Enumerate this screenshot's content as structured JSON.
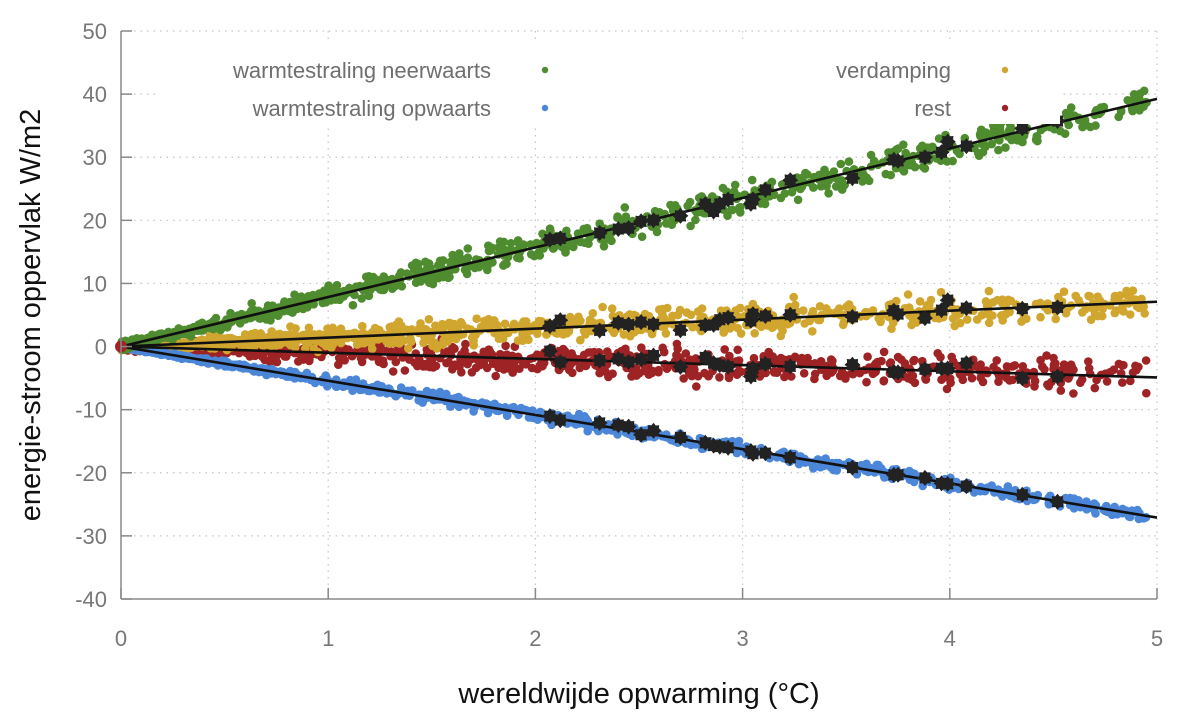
{
  "chart_data": {
    "type": "scatter",
    "title": "",
    "xlabel": "wereldwijde opwarming (°C)",
    "ylabel": "energie-stroom oppervlak W/m2",
    "xlim": [
      0,
      5
    ],
    "ylim": [
      -40,
      50
    ],
    "x_ticks": [
      "0",
      "1",
      "2",
      "3",
      "4",
      "5"
    ],
    "y_ticks": [
      "50",
      "40",
      "30",
      "20",
      "10",
      "0",
      "-10",
      "-20",
      "-30",
      "-40"
    ],
    "grid": true,
    "legend_placement": "top",
    "series": [
      {
        "name": "warmtestraling neerwaarts",
        "color": "#4e8c2f",
        "fit_slope": 7.85,
        "spread": 1.1,
        "legend_column": "left"
      },
      {
        "name": "warmtestraling opwaarts",
        "color": "#4b86d8",
        "fit_slope": -5.42,
        "spread": 0.45,
        "legend_column": "left"
      },
      {
        "name": "verdamping",
        "color": "#d1a62f",
        "fit_slope": 1.42,
        "spread": 1.1,
        "legend_column": "right"
      },
      {
        "name": "rest",
        "color": "#9e2324",
        "fit_slope": -0.98,
        "spread": 1.3,
        "legend_column": "right"
      }
    ],
    "fit_lines": {
      "color": "#111111",
      "x_range": [
        0,
        5
      ]
    },
    "highlight_markers": {
      "color": "#222222",
      "x": [
        2.07,
        2.12,
        2.31,
        2.4,
        2.45,
        2.51,
        2.57,
        2.7,
        2.82,
        2.86,
        2.89,
        2.93,
        3.04,
        3.05,
        3.11,
        3.23,
        3.53,
        3.73,
        3.75,
        3.88,
        3.96,
        3.99,
        4.08,
        4.35,
        4.52
      ]
    }
  }
}
